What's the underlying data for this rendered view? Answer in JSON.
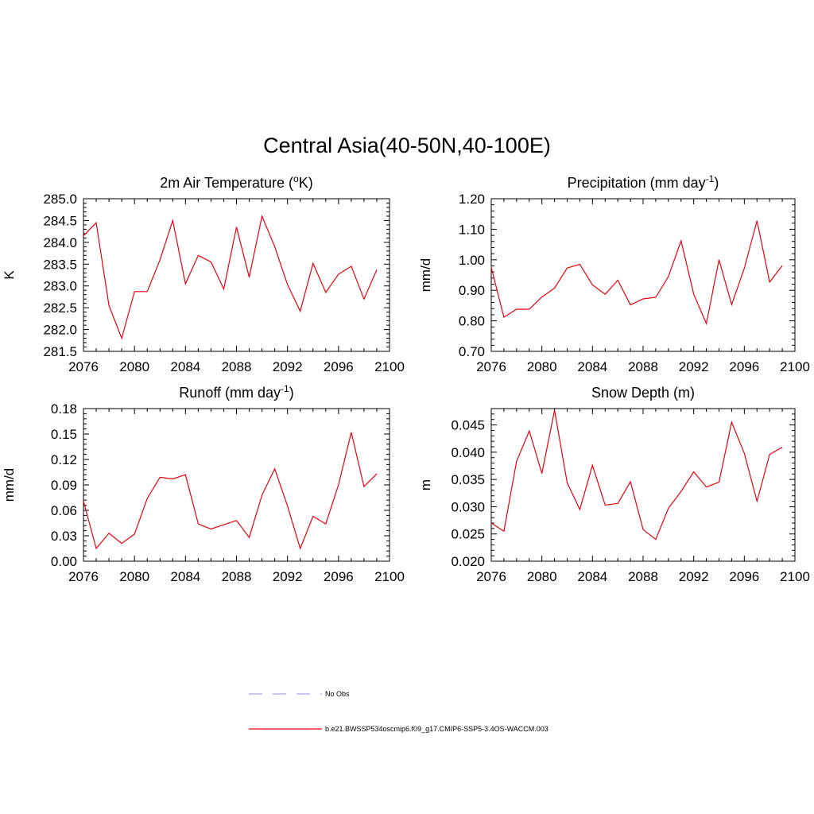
{
  "title": "Central Asia(40-50N,40-100E)",
  "chart_data": [
    {
      "type": "line",
      "title": "2m Air Temperature (°K)",
      "title_parts": {
        "base": "2m Air Temperature (",
        "sup": "o",
        "tail": "K)"
      },
      "ylabel": "K",
      "xlim": [
        2076,
        2100
      ],
      "ylim": [
        281.5,
        285.0
      ],
      "x_ticks": [
        "2076",
        "2080",
        "2084",
        "2088",
        "2092",
        "2096",
        "2100"
      ],
      "y_ticks": [
        "285.0",
        "284.5",
        "284.0",
        "283.5",
        "283.0",
        "282.5",
        "282.0",
        "281.5"
      ],
      "x": [
        2076,
        2077,
        2078,
        2079,
        2080,
        2081,
        2082,
        2083,
        2084,
        2085,
        2086,
        2087,
        2088,
        2089,
        2090,
        2091,
        2092,
        2093,
        2094,
        2095,
        2096,
        2097,
        2098,
        2099
      ],
      "series": [
        {
          "name": "b.e21.BWSSP534oscmip6.f09_g17.CMIP6-SSP5-3.4OS-WACCM.003",
          "color": "#e8000b",
          "values": [
            284.15,
            284.45,
            282.55,
            281.8,
            282.87,
            282.87,
            283.6,
            284.5,
            283.05,
            283.7,
            283.55,
            282.93,
            284.35,
            283.2,
            284.6,
            283.9,
            283.03,
            282.42,
            283.52,
            282.85,
            283.27,
            283.45,
            282.7,
            283.37
          ]
        }
      ]
    },
    {
      "type": "line",
      "title": "Precipitation (mm day-1)",
      "title_parts": {
        "base": "Precipitation (mm day",
        "sup": "-1",
        "tail": ")"
      },
      "ylabel": "mm/d",
      "xlim": [
        2076,
        2100
      ],
      "ylim": [
        0.7,
        1.2
      ],
      "x_ticks": [
        "2076",
        "2080",
        "2084",
        "2088",
        "2092",
        "2096",
        "2100"
      ],
      "y_ticks": [
        "1.20",
        "1.10",
        "1.00",
        "0.90",
        "0.80",
        "0.70"
      ],
      "x": [
        2076,
        2077,
        2078,
        2079,
        2080,
        2081,
        2082,
        2083,
        2084,
        2085,
        2086,
        2087,
        2088,
        2089,
        2090,
        2091,
        2092,
        2093,
        2094,
        2095,
        2096,
        2097,
        2098,
        2099
      ],
      "series": [
        {
          "name": "b.e21.BWSSP534oscmip6.f09_g17.CMIP6-SSP5-3.4OS-WACCM.003",
          "color": "#e8000b",
          "values": [
            0.975,
            0.812,
            0.838,
            0.838,
            0.878,
            0.907,
            0.973,
            0.985,
            0.918,
            0.887,
            0.933,
            0.852,
            0.872,
            0.877,
            0.945,
            1.062,
            0.887,
            0.791,
            1.0,
            0.853,
            0.972,
            1.128,
            0.927,
            0.981
          ]
        }
      ]
    },
    {
      "type": "line",
      "title": "Runoff (mm day-1)",
      "title_parts": {
        "base": "Runoff (mm day",
        "sup": "-1",
        "tail": ")"
      },
      "ylabel": "mm/d",
      "xlim": [
        2076,
        2100
      ],
      "ylim": [
        0.0,
        0.18
      ],
      "x_ticks": [
        "2076",
        "2080",
        "2084",
        "2088",
        "2092",
        "2096",
        "2100"
      ],
      "y_ticks": [
        "0.18",
        "0.15",
        "0.12",
        "0.09",
        "0.06",
        "0.03",
        "0.00"
      ],
      "x": [
        2076,
        2077,
        2078,
        2079,
        2080,
        2081,
        2082,
        2083,
        2084,
        2085,
        2086,
        2087,
        2088,
        2089,
        2090,
        2091,
        2092,
        2093,
        2094,
        2095,
        2096,
        2097,
        2098,
        2099
      ],
      "series": [
        {
          "name": "b.e21.BWSSP534oscmip6.f09_g17.CMIP6-SSP5-3.4OS-WACCM.003",
          "color": "#e8000b",
          "values": [
            0.071,
            0.015,
            0.033,
            0.021,
            0.032,
            0.074,
            0.099,
            0.097,
            0.102,
            0.044,
            0.038,
            0.043,
            0.048,
            0.028,
            0.078,
            0.109,
            0.065,
            0.015,
            0.053,
            0.044,
            0.09,
            0.152,
            0.088,
            0.103
          ]
        }
      ]
    },
    {
      "type": "line",
      "title": "Snow Depth (m)",
      "title_parts": {
        "base": "Snow Depth (m)",
        "sup": "",
        "tail": ""
      },
      "ylabel": "m",
      "xlim": [
        2076,
        2100
      ],
      "ylim": [
        0.02,
        0.048
      ],
      "x_ticks": [
        "2076",
        "2080",
        "2084",
        "2088",
        "2092",
        "2096",
        "2100"
      ],
      "y_ticks": [
        "0.045",
        "0.040",
        "0.035",
        "0.030",
        "0.025",
        "0.020"
      ],
      "x": [
        2076,
        2077,
        2078,
        2079,
        2080,
        2081,
        2082,
        2083,
        2084,
        2085,
        2086,
        2087,
        2088,
        2089,
        2090,
        2091,
        2092,
        2093,
        2094,
        2095,
        2096,
        2097,
        2098,
        2099
      ],
      "series": [
        {
          "name": "b.e21.BWSSP534oscmip6.f09_g17.CMIP6-SSP5-3.4OS-WACCM.003",
          "color": "#e8000b",
          "values": [
            0.027,
            0.0255,
            0.0383,
            0.0439,
            0.0361,
            0.0477,
            0.0344,
            0.0295,
            0.0376,
            0.0303,
            0.0306,
            0.0346,
            0.0258,
            0.024,
            0.0297,
            0.0328,
            0.0364,
            0.0336,
            0.0345,
            0.0455,
            0.0398,
            0.031,
            0.0396,
            0.0409
          ]
        }
      ]
    }
  ],
  "legend": {
    "items": [
      {
        "label": "No Obs",
        "color": "#a9a9e8",
        "style": "dashed"
      },
      {
        "label": "b.e21.BWSSP534oscmip6.f09_g17.CMIP6-SSP5-3.4OS-WACCM.003",
        "color": "#e8000b",
        "style": "solid"
      }
    ]
  }
}
